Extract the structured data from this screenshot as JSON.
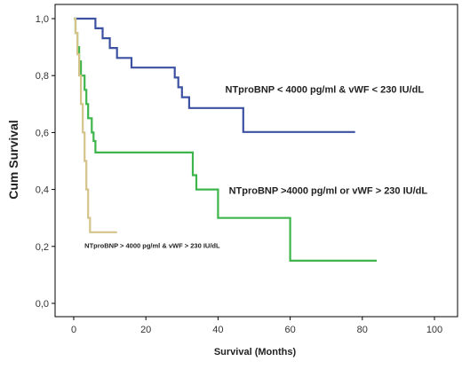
{
  "chart_data": {
    "type": "line",
    "subtype": "kaplan-meier step",
    "xlabel": "Survival (Months)",
    "ylabel": "Cum Survival",
    "xlim": [
      0,
      100
    ],
    "ylim": [
      0,
      1
    ],
    "x_ticks": [
      "0",
      "20",
      "40",
      "60",
      "80",
      "100"
    ],
    "y_ticks": [
      "0,0",
      "0,2",
      "0,4",
      "0,6",
      "0,8",
      "1,0"
    ],
    "grid": false,
    "series": [
      {
        "name": "NTproBNP < 4000 pg/ml & vWF < 230 IU/dL",
        "color": "#3d51a3",
        "points": [
          [
            0,
            1.0
          ],
          [
            6,
            1.0
          ],
          [
            6,
            0.966
          ],
          [
            8,
            0.966
          ],
          [
            8,
            0.931
          ],
          [
            10,
            0.931
          ],
          [
            10,
            0.897
          ],
          [
            12,
            0.897
          ],
          [
            12,
            0.862
          ],
          [
            16,
            0.862
          ],
          [
            16,
            0.828
          ],
          [
            28,
            0.828
          ],
          [
            28,
            0.793
          ],
          [
            29,
            0.793
          ],
          [
            29,
            0.759
          ],
          [
            30,
            0.759
          ],
          [
            30,
            0.724
          ],
          [
            32,
            0.724
          ],
          [
            32,
            0.686
          ],
          [
            47,
            0.686
          ],
          [
            47,
            0.602
          ],
          [
            78,
            0.602
          ]
        ]
      },
      {
        "name": "NTproBNP >4000 pg/ml or  vWF > 230 IU/dL",
        "color": "#3db54a",
        "points": [
          [
            0,
            1.0
          ],
          [
            0.5,
            1.0
          ],
          [
            0.5,
            0.95
          ],
          [
            1,
            0.95
          ],
          [
            1,
            0.9
          ],
          [
            1.5,
            0.9
          ],
          [
            1.5,
            0.85
          ],
          [
            2,
            0.85
          ],
          [
            2,
            0.8
          ],
          [
            3,
            0.8
          ],
          [
            3,
            0.75
          ],
          [
            3.5,
            0.75
          ],
          [
            3.5,
            0.7
          ],
          [
            4,
            0.7
          ],
          [
            4,
            0.65
          ],
          [
            5,
            0.65
          ],
          [
            5,
            0.6
          ],
          [
            5.5,
            0.6
          ],
          [
            5.5,
            0.57
          ],
          [
            6,
            0.57
          ],
          [
            6,
            0.53
          ],
          [
            33,
            0.53
          ],
          [
            33,
            0.45
          ],
          [
            34,
            0.45
          ],
          [
            34,
            0.4
          ],
          [
            40,
            0.4
          ],
          [
            40,
            0.3
          ],
          [
            60,
            0.3
          ],
          [
            60,
            0.15
          ],
          [
            84,
            0.15
          ]
        ]
      },
      {
        "name": "NTproBNP > 4000 pg/ml & vWF > 230 IU/dL",
        "color": "#d4c48a",
        "points": [
          [
            0,
            1.0
          ],
          [
            0.5,
            1.0
          ],
          [
            0.5,
            0.95
          ],
          [
            1,
            0.95
          ],
          [
            1,
            0.875
          ],
          [
            1.5,
            0.875
          ],
          [
            1.5,
            0.8
          ],
          [
            2,
            0.8
          ],
          [
            2,
            0.7
          ],
          [
            2.5,
            0.7
          ],
          [
            2.5,
            0.6
          ],
          [
            3,
            0.6
          ],
          [
            3,
            0.5
          ],
          [
            3.5,
            0.5
          ],
          [
            3.5,
            0.4
          ],
          [
            4,
            0.4
          ],
          [
            4,
            0.3
          ],
          [
            4.5,
            0.3
          ],
          [
            4.5,
            0.25
          ],
          [
            12,
            0.25
          ]
        ]
      }
    ],
    "annotations": [
      {
        "text": "NTproBNP < 4000 pg/ml & vWF < 230 IU/dL",
        "x": 42,
        "y": 0.74,
        "size": "medium"
      },
      {
        "text": "NTproBNP >4000 pg/ml or  vWF > 230 IU/dL",
        "x": 43,
        "y": 0.385,
        "size": "medium"
      },
      {
        "text": "NTproBNP > 4000 pg/ml & vWF > 230 IU/dL",
        "x": 3,
        "y": 0.195,
        "size": "small"
      }
    ]
  }
}
